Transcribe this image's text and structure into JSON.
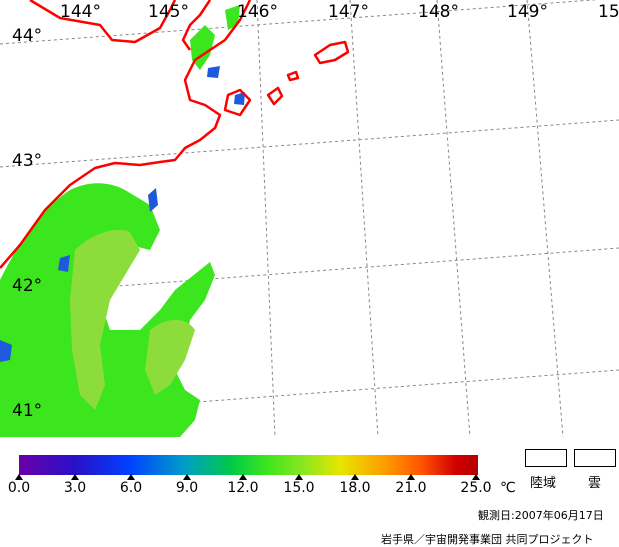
{
  "map": {
    "longitude_labels": [
      "144°",
      "145°",
      "146°",
      "147°",
      "148°",
      "149°",
      "15"
    ],
    "latitude_labels": [
      "44°",
      "43°",
      "42°",
      "41°"
    ]
  },
  "colors": {
    "coastline": "#ff0000",
    "sst_main": "#3ce61e",
    "sst_warm": "#8cdc3c",
    "sst_cool": "#1e5adc",
    "grid": "#888888"
  },
  "colorbar": {
    "tick_labels": [
      "0.0",
      "3.0",
      "6.0",
      "9.0",
      "12.0",
      "15.0",
      "18.0",
      "21.0",
      "25.0"
    ],
    "unit": "℃",
    "value_range": [
      0.0,
      25.0
    ]
  },
  "legend": {
    "land_label": "陸域",
    "cloud_label": "雲"
  },
  "footer": {
    "observation_date": "観測日:2007年06月17日",
    "credit": "岩手県／宇宙開発事業団 共同プロジェクト"
  }
}
